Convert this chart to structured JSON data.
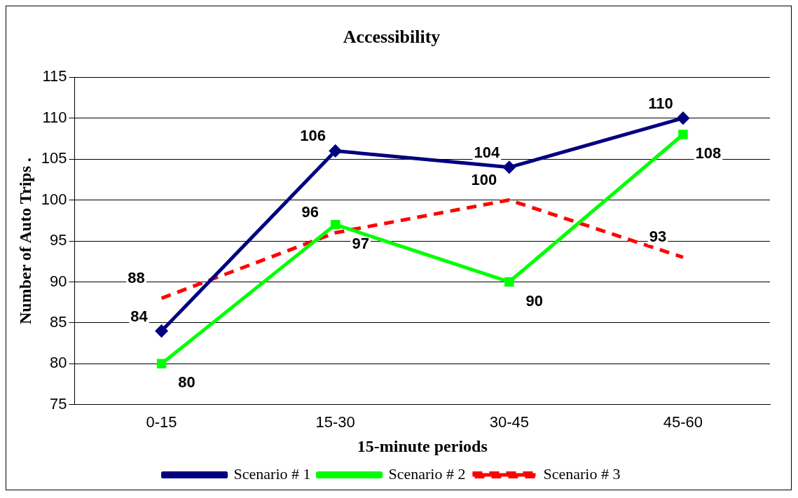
{
  "chart_data": {
    "type": "line",
    "title": "Accessibility",
    "xlabel": "15-minute periods",
    "ylabel": "Number of Auto Trips .",
    "categories": [
      "0-15",
      "15-30",
      "30-45",
      "45-60"
    ],
    "series": [
      {
        "name": "Scenario # 1",
        "color": "#000080",
        "values": [
          84,
          106,
          104,
          110
        ],
        "marker": "diamond",
        "line_style": "solid"
      },
      {
        "name": "Scenario # 2",
        "color": "#00ff00",
        "values": [
          80,
          97,
          90,
          108
        ],
        "marker": "square",
        "line_style": "solid"
      },
      {
        "name": "Scenario # 3",
        "color": "#ff0000",
        "values": [
          88,
          96,
          100,
          93
        ],
        "marker": "none",
        "line_style": "dashed"
      }
    ],
    "ylim": [
      75,
      115
    ],
    "yticks": [
      75,
      80,
      85,
      90,
      95,
      100,
      105,
      110,
      115
    ],
    "grid": "y",
    "legend": "bottom",
    "data_labels": true
  }
}
